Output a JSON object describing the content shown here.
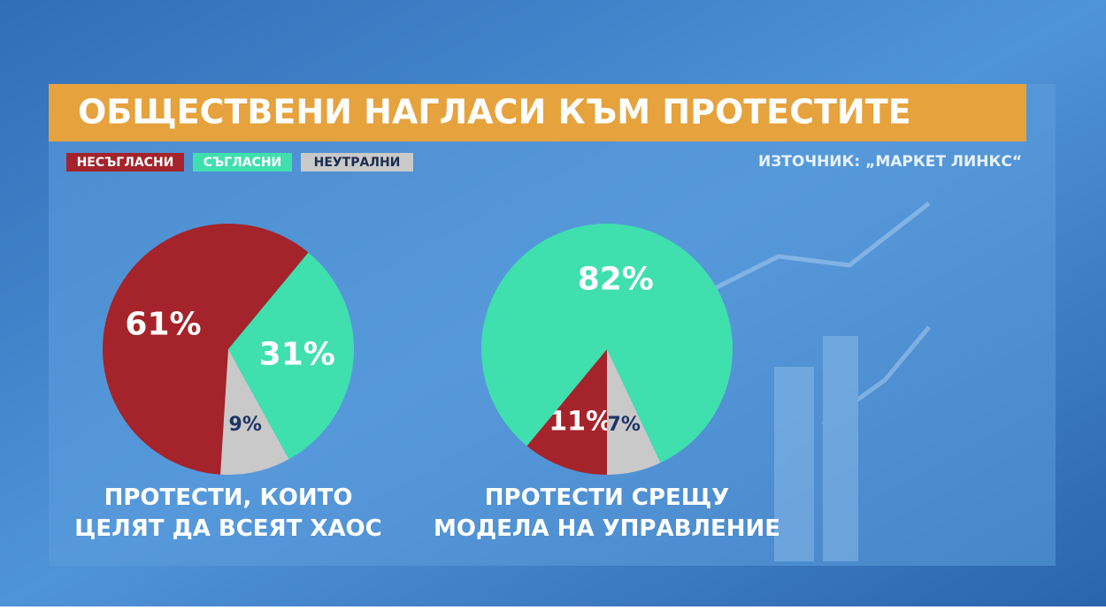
{
  "header": {
    "title": "ОБЩЕСТВЕНИ НАГЛАСИ КЪМ ПРОТЕСТИТЕ",
    "source": "ИЗТОЧНИК: „МАРКЕТ ЛИНКС“"
  },
  "chart_data": [
    {
      "type": "pie",
      "title": "ПРОТЕСТИ, КОИТО\nЦЕЛЯТ ДА ВСЕЯТ ХАОС",
      "categories": [
        "НЕСЪГЛАСНИ",
        "СЪГЛАСНИ",
        "НЕУТРАЛНИ"
      ],
      "values": [
        61,
        31,
        9
      ],
      "value_labels": [
        "61%",
        "31%",
        "9%"
      ],
      "colors": [
        "#a5232a",
        "#3fdfae",
        "#c9c9c9"
      ]
    },
    {
      "type": "pie",
      "title": "ПРОТЕСТИ СРЕЩУ\nМОДЕЛА НА УПРАВЛЕНИЕ",
      "categories": [
        "НЕСЪГЛАСНИ",
        "СЪГЛАСНИ",
        "НЕУТРАЛНИ"
      ],
      "values": [
        11,
        82,
        7
      ],
      "value_labels": [
        "11%",
        "82%",
        "7%"
      ],
      "colors": [
        "#a5232a",
        "#3fdfae",
        "#c9c9c9"
      ]
    }
  ]
}
